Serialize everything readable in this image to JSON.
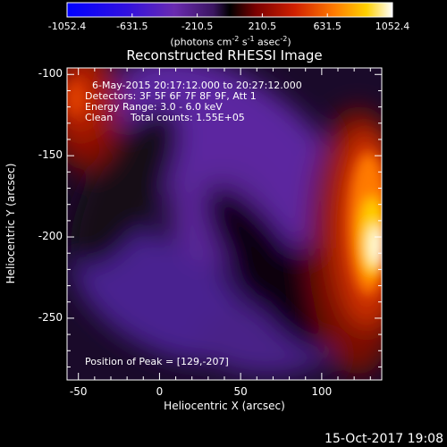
{
  "colorbar": {
    "ticks": [
      "-1052.4",
      "-631.5",
      "-210.5",
      "210.5",
      "631.5",
      "1052.4"
    ],
    "unit_prefix": "(photons cm",
    "unit_exp1": "-2",
    "unit_mid1": " s",
    "unit_exp2": "-1",
    "unit_mid2": " asec",
    "unit_exp3": "-2",
    "unit_suffix": ")"
  },
  "plot": {
    "title": "Reconstructed RHESSI Image",
    "xlabel": "Heliocentric X (arcsec)",
    "ylabel": "Heliocentric Y (arcsec)",
    "xticks": [
      "-50",
      "0",
      "50",
      "100"
    ],
    "yticks": [
      "-100",
      "-150",
      "-200",
      "-250"
    ],
    "annotations": {
      "time_range": "6-May-2015 20:17:12.000 to 20:27:12.000",
      "detectors": "Detectors: 3F 5F 6F 7F 8F 9F, Att 1",
      "energy_range": "Energy Range: 3.0 - 6.0 keV",
      "clean": "Clean",
      "total_counts": "Total counts: 1.55E+05",
      "peak_position": "Position of Peak = [129,-207]"
    }
  },
  "footer": {
    "date": "15-Oct-2017 19:08"
  },
  "colors": {
    "background": "#000000",
    "colormap": [
      "#0000ff",
      "#4020c0",
      "#6a2bb0",
      "#2a1040",
      "#000000",
      "#600000",
      "#b01000",
      "#ff6a00",
      "#ffd000",
      "#ffffff"
    ]
  }
}
